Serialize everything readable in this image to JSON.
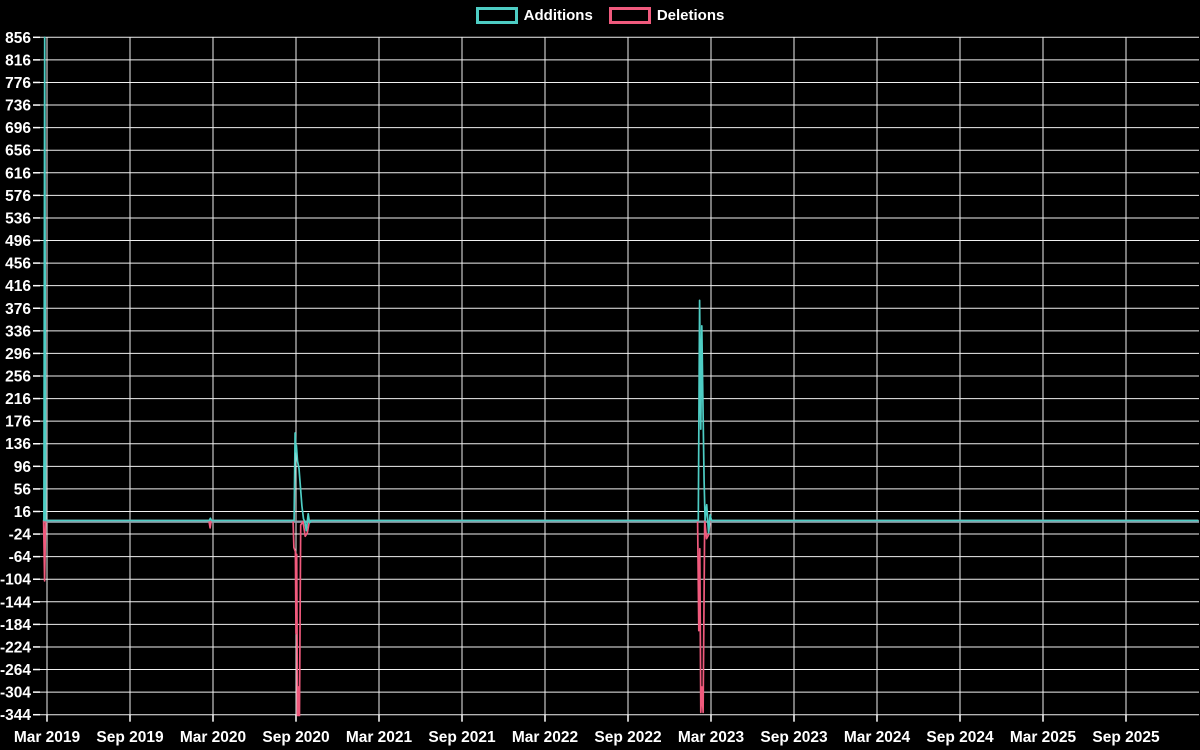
{
  "chart_data": {
    "type": "line",
    "title": "",
    "background_color": "#000000",
    "grid": true,
    "grid_color": "#f0f0f0",
    "text_color": "#ffffff",
    "zero_line_color": "#8c9ba6",
    "legend_position": "top-center",
    "x_unit": "decimal_year",
    "x_tick_labels": [
      "Mar 2019",
      "Sep 2019",
      "Mar 2020",
      "Sep 2020",
      "Mar 2021",
      "Sep 2021",
      "Mar 2022",
      "Sep 2022",
      "Mar 2023",
      "Sep 2023",
      "Mar 2024",
      "Sep 2024",
      "Mar 2025",
      "Sep 2025"
    ],
    "x_tick_values": [
      2019.1667,
      2019.6667,
      2020.1667,
      2020.6667,
      2021.1667,
      2021.6667,
      2022.1667,
      2022.6667,
      2023.1667,
      2023.6667,
      2024.1667,
      2024.6667,
      2025.1667,
      2025.6667
    ],
    "y_ticks": [
      856,
      816,
      776,
      736,
      696,
      656,
      616,
      576,
      536,
      496,
      456,
      416,
      376,
      336,
      296,
      256,
      216,
      176,
      136,
      96,
      56,
      16,
      -24,
      -64,
      -104,
      -144,
      -184,
      -224,
      -264,
      -304,
      -344
    ],
    "y_range": [
      -344,
      856
    ],
    "series": [
      {
        "name": "Additions",
        "color": "#4ecdc4",
        "points": [
          [
            2019.148,
            0
          ],
          [
            2019.153,
            856
          ],
          [
            2019.158,
            0
          ],
          [
            2020.144,
            0
          ],
          [
            2020.151,
            4
          ],
          [
            2020.158,
            0
          ],
          [
            2020.655,
            0
          ],
          [
            2020.661,
            155
          ],
          [
            2020.666,
            122
          ],
          [
            2020.669,
            133
          ],
          [
            2020.676,
            105
          ],
          [
            2020.685,
            92
          ],
          [
            2020.694,
            58
          ],
          [
            2020.702,
            26
          ],
          [
            2020.712,
            3
          ],
          [
            2020.72,
            -2
          ],
          [
            2020.729,
            -18
          ],
          [
            2020.74,
            12
          ],
          [
            2020.748,
            -4
          ],
          [
            2020.757,
            0
          ],
          [
            2023.09,
            0
          ],
          [
            2023.098,
            390
          ],
          [
            2023.105,
            162
          ],
          [
            2023.111,
            345
          ],
          [
            2023.118,
            212
          ],
          [
            2023.125,
            70
          ],
          [
            2023.131,
            0
          ],
          [
            2023.141,
            28
          ],
          [
            2023.152,
            -22
          ],
          [
            2023.161,
            10
          ],
          [
            2023.17,
            0
          ],
          [
            2026.1,
            0
          ]
        ]
      },
      {
        "name": "Deletions",
        "color": "#f05a7d",
        "points": [
          [
            2019.146,
            0
          ],
          [
            2019.152,
            -107
          ],
          [
            2019.158,
            0
          ],
          [
            2020.142,
            0
          ],
          [
            2020.149,
            -13
          ],
          [
            2020.156,
            0
          ],
          [
            2020.649,
            0
          ],
          [
            2020.654,
            -48
          ],
          [
            2020.663,
            -55
          ],
          [
            2020.667,
            -200
          ],
          [
            2020.671,
            -60
          ],
          [
            2020.676,
            -360
          ],
          [
            2020.682,
            -295
          ],
          [
            2020.687,
            -360
          ],
          [
            2020.695,
            -8
          ],
          [
            2020.709,
            -2
          ],
          [
            2020.722,
            -28
          ],
          [
            2020.735,
            -22
          ],
          [
            2020.748,
            0
          ],
          [
            2023.086,
            0
          ],
          [
            2023.093,
            -195
          ],
          [
            2023.099,
            -50
          ],
          [
            2023.105,
            -340
          ],
          [
            2023.112,
            -295
          ],
          [
            2023.119,
            -340
          ],
          [
            2023.129,
            0
          ],
          [
            2023.14,
            -32
          ],
          [
            2023.151,
            -26
          ],
          [
            2023.161,
            0
          ],
          [
            2026.1,
            0
          ]
        ]
      }
    ]
  }
}
